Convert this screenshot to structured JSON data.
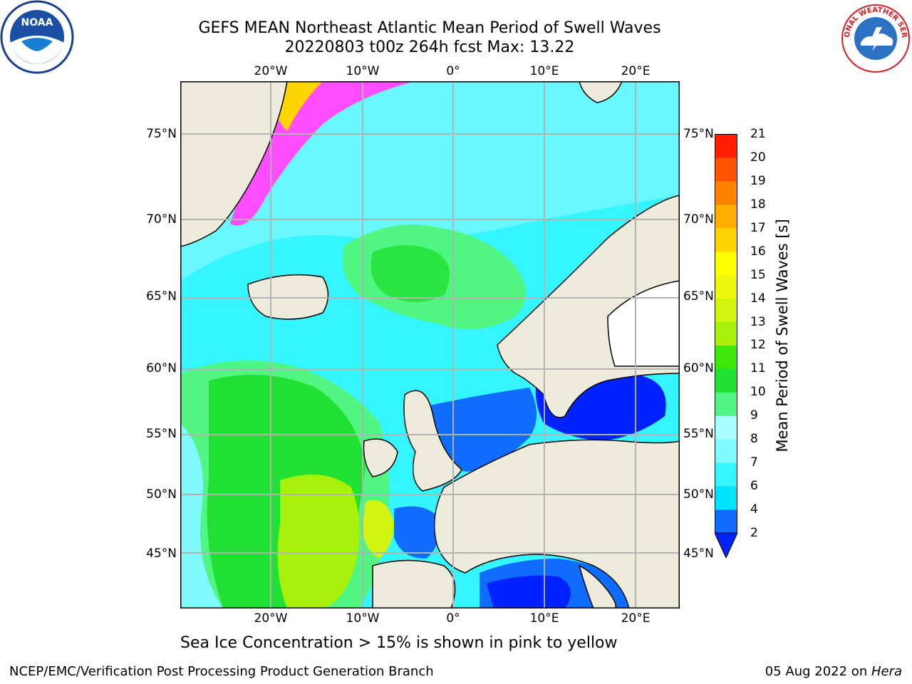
{
  "header": {
    "title_line1": "GEFS MEAN Northeast Atlantic Mean Period of Swell Waves",
    "title_line2": "20220803 t00z 264h fcst   Max: 13.22"
  },
  "logos": {
    "left": {
      "icon": "noaa-logo",
      "text": "NOAA"
    },
    "right": {
      "icon": "nws-logo",
      "text": "NATIONAL WEATHER SERVICE"
    }
  },
  "map": {
    "lon_labels_top": [
      "20°W",
      "10°W",
      "0°",
      "10°E",
      "20°E"
    ],
    "lon_labels_bottom": [
      "20°W",
      "10°W",
      "0°",
      "10°E",
      "20°E"
    ],
    "lat_labels_left": [
      "75°N",
      "70°N",
      "65°N",
      "60°N",
      "55°N",
      "50°N",
      "45°N"
    ],
    "lat_labels_right": [
      "75°N",
      "70°N",
      "65°N",
      "60°N",
      "55°N",
      "50°N",
      "45°N"
    ],
    "colors": {
      "ocean_background": "#00e5f0",
      "land": "#ecebdc",
      "grid": "#b3b3b3"
    }
  },
  "colorbar": {
    "title": "Mean Period of Swell Waves [s]",
    "ticks": [
      "2",
      "4",
      "6",
      "7",
      "8",
      "9",
      "10",
      "11",
      "12",
      "13",
      "14",
      "15",
      "16",
      "17",
      "18",
      "19",
      "20",
      "21"
    ],
    "colors": [
      "#0f6cff",
      "#00e3ff",
      "#35f5ff",
      "#80faff",
      "#a9ffff",
      "#51f582",
      "#20e033",
      "#3ce80a",
      "#a7f10b",
      "#d1f50e",
      "#eef80c",
      "#ffff00",
      "#ffd400",
      "#ffae00",
      "#ff8300",
      "#ff5300",
      "#ff1f00",
      "#ff0000"
    ],
    "under_color": "#0022ff"
  },
  "footer": {
    "note": "Sea Ice Concentration > 15% is shown in pink to yellow",
    "credit": "NCEP/EMC/Verification Post Processing Product Generation Branch",
    "date": "05 Aug 2022 on ",
    "machine": "Hera"
  }
}
